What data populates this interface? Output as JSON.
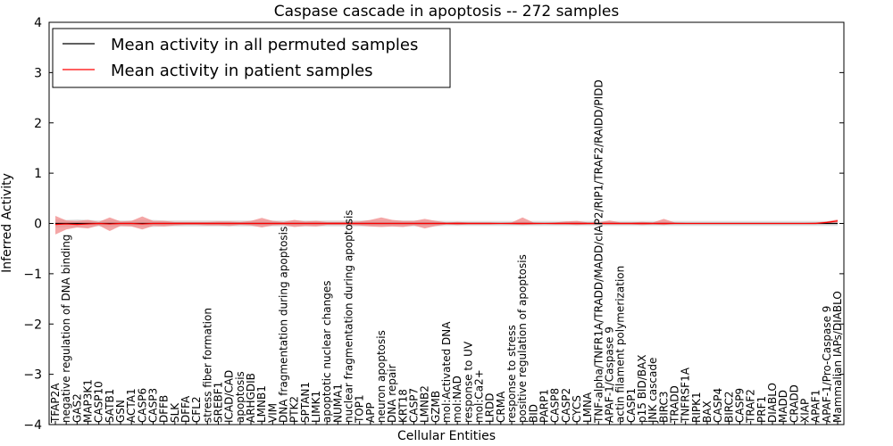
{
  "chart_data": {
    "type": "line",
    "title": "Caspase cascade in apoptosis -- 272 samples",
    "xlabel": "Cellular Entities",
    "ylabel": "Inferred Activity",
    "ylim": [
      -4,
      4
    ],
    "yticks": [
      -4,
      -3,
      -2,
      -1,
      0,
      1,
      2,
      3,
      4
    ],
    "legend_position": "top-left",
    "grid": false,
    "colors": {
      "permuted": "#000000",
      "patient": "#ff0000",
      "patient_band": "#f08080",
      "permuted_band": "#c8c8c8"
    },
    "categories": [
      "TFAP2A",
      "negative regulation of DNA binding",
      "GAS2",
      "MAP3K1",
      "CASP10",
      "SATB1",
      "GSN",
      "ACTA1",
      "CASP6",
      "CASP3",
      "DFFB",
      "SLK",
      "DFFA",
      "CFL2",
      "stress fiber formation",
      "SREBF1",
      "ICAD/CAD",
      "apoptosis",
      "ARHGDIB",
      "LMNB1",
      "VIM",
      "DNA fragmentation during apoptosis",
      "PTK2",
      "SPTAN1",
      "LIMK1",
      "apoptotic nuclear changes",
      "NUMA1",
      "nuclear fragmentation during apoptosis",
      "TOP1",
      "APP",
      "neuron apoptosis",
      "DNA repair",
      "KRT18",
      "CASP7",
      "LMNB2",
      "GZMB",
      "mol:Activated DNA",
      "mol:NAD",
      "response to UV",
      "mol:Ca2+",
      "LRDD",
      "CRMA",
      "response to stress",
      "positive regulation of apoptosis",
      "BID",
      "PARP1",
      "CASP8",
      "CASP2",
      "CYCS",
      "LMNA",
      "TNF-alpha/TNFR1A/TRADD/MADD/cIAP2/RIP1/TRAF2/RAIDD/PIDD",
      "APAF-1/Caspase 9",
      "actin filament polymerization",
      "CASP1",
      "p15 BID/BAX",
      "JNK cascade",
      "BIRC3",
      "TRADD",
      "TNFRSF1A",
      "RIPK1",
      "BAX",
      "CASP4",
      "BIRC2",
      "CASP9",
      "TRAF2",
      "PRF1",
      "DIABLO",
      "MADD",
      "CRADD",
      "XIAP",
      "APAF1",
      "APAF-1/Pro-Caspase 9",
      "Mammalian IAPs/DIABLO"
    ],
    "series": [
      {
        "name": "Mean activity in all permuted samples",
        "values": [
          0,
          0,
          0,
          0,
          0,
          0,
          0,
          0,
          0,
          0,
          0,
          0,
          0,
          0,
          0,
          0,
          0,
          0,
          0,
          0,
          0,
          0,
          0,
          0,
          0,
          0,
          0,
          0,
          0,
          0,
          0,
          0,
          0,
          0,
          0,
          0,
          0,
          0,
          0,
          0,
          0,
          0,
          0,
          0,
          0,
          0,
          0,
          0,
          0,
          0,
          0,
          0,
          0,
          0,
          0,
          0,
          0,
          0,
          0,
          0,
          0,
          0,
          0,
          0,
          0,
          0,
          0,
          0,
          0,
          0,
          0,
          0,
          0
        ],
        "band_lower": [
          -0.08,
          -0.07,
          -0.08,
          -0.07,
          -0.06,
          -0.07,
          -0.06,
          -0.06,
          -0.07,
          -0.07,
          -0.06,
          -0.06,
          -0.06,
          -0.06,
          -0.06,
          -0.06,
          -0.06,
          -0.06,
          -0.06,
          -0.06,
          -0.06,
          -0.06,
          -0.06,
          -0.06,
          -0.06,
          -0.06,
          -0.06,
          -0.06,
          -0.06,
          -0.06,
          -0.06,
          -0.06,
          -0.06,
          -0.06,
          -0.06,
          -0.06,
          -0.05,
          -0.05,
          -0.05,
          -0.05,
          -0.05,
          -0.05,
          -0.05,
          -0.05,
          -0.05,
          -0.05,
          -0.05,
          -0.05,
          -0.05,
          -0.05,
          -0.05,
          -0.05,
          -0.05,
          -0.05,
          -0.05,
          -0.05,
          -0.05,
          -0.05,
          -0.05,
          -0.05,
          -0.05,
          -0.05,
          -0.05,
          -0.05,
          -0.05,
          -0.05,
          -0.05,
          -0.05,
          -0.05,
          -0.05,
          -0.05,
          -0.05,
          -0.05
        ],
        "band_upper": [
          0.08,
          0.07,
          0.08,
          0.07,
          0.06,
          0.07,
          0.06,
          0.06,
          0.07,
          0.07,
          0.06,
          0.06,
          0.06,
          0.06,
          0.06,
          0.06,
          0.06,
          0.06,
          0.06,
          0.06,
          0.06,
          0.06,
          0.06,
          0.06,
          0.06,
          0.06,
          0.06,
          0.06,
          0.06,
          0.06,
          0.06,
          0.06,
          0.06,
          0.06,
          0.06,
          0.06,
          0.05,
          0.05,
          0.05,
          0.05,
          0.05,
          0.05,
          0.05,
          0.05,
          0.05,
          0.05,
          0.05,
          0.05,
          0.05,
          0.05,
          0.05,
          0.05,
          0.05,
          0.05,
          0.05,
          0.05,
          0.05,
          0.05,
          0.05,
          0.05,
          0.05,
          0.05,
          0.05,
          0.05,
          0.05,
          0.05,
          0.05,
          0.05,
          0.05,
          0.05,
          0.05,
          0.05,
          0.05
        ]
      },
      {
        "name": "Mean activity in patient samples",
        "values": [
          -0.02,
          -0.01,
          -0.02,
          -0.01,
          0,
          -0.01,
          0,
          0,
          -0.01,
          0,
          0,
          0,
          0,
          0,
          0,
          0,
          0,
          0,
          0,
          0,
          0,
          0,
          0,
          0,
          0,
          0,
          0,
          0,
          0,
          0,
          0,
          0,
          0,
          0,
          0,
          0,
          0,
          0,
          0,
          0,
          0,
          0,
          0,
          0,
          0,
          0,
          0,
          0,
          0,
          0,
          0,
          0,
          0,
          0,
          0,
          0,
          0,
          0,
          0,
          0,
          0,
          0,
          0,
          0,
          0,
          0,
          0,
          0,
          0,
          0,
          0,
          0.02,
          0.05
        ],
        "band_lower": [
          -0.22,
          -0.12,
          -0.08,
          -0.1,
          -0.04,
          -0.15,
          -0.05,
          -0.06,
          -0.12,
          -0.05,
          -0.06,
          -0.04,
          -0.03,
          -0.03,
          -0.04,
          -0.04,
          -0.05,
          -0.03,
          -0.04,
          -0.08,
          -0.04,
          -0.03,
          -0.07,
          -0.05,
          -0.06,
          -0.03,
          -0.03,
          -0.03,
          -0.04,
          -0.06,
          -0.07,
          -0.06,
          -0.07,
          -0.04,
          -0.1,
          -0.05,
          -0.02,
          -0.03,
          -0.02,
          -0.02,
          -0.02,
          -0.01,
          -0.02,
          -0.03,
          -0.02,
          -0.01,
          -0.02,
          -0.02,
          -0.03,
          -0.02,
          -0.02,
          -0.02,
          -0.02,
          -0.02,
          -0.03,
          -0.02,
          -0.03,
          -0.01,
          -0.01,
          -0.01,
          -0.01,
          -0.01,
          -0.01,
          -0.01,
          -0.01,
          -0.01,
          -0.01,
          -0.01,
          -0.01,
          -0.01,
          -0.01,
          0.0,
          0.02
        ],
        "band_upper": [
          0.15,
          0.06,
          0.05,
          0.07,
          0.03,
          0.12,
          0.04,
          0.05,
          0.14,
          0.05,
          0.05,
          0.03,
          0.03,
          0.03,
          0.03,
          0.04,
          0.04,
          0.03,
          0.05,
          0.11,
          0.05,
          0.03,
          0.07,
          0.04,
          0.05,
          0.03,
          0.03,
          0.03,
          0.04,
          0.07,
          0.12,
          0.07,
          0.05,
          0.05,
          0.09,
          0.05,
          0.02,
          0.03,
          0.02,
          0.02,
          0.02,
          0.01,
          0.02,
          0.12,
          0.02,
          0.01,
          0.02,
          0.04,
          0.05,
          0.02,
          0.02,
          0.06,
          0.02,
          0.02,
          0.03,
          0.02,
          0.09,
          0.02,
          0.01,
          0.01,
          0.01,
          0.01,
          0.01,
          0.01,
          0.01,
          0.01,
          0.01,
          0.01,
          0.01,
          0.01,
          0.02,
          0.04,
          0.08
        ]
      }
    ]
  }
}
